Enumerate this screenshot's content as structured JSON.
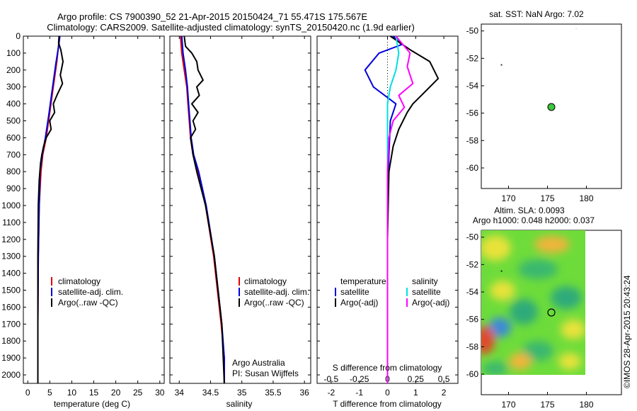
{
  "title": {
    "line1": "Argo profile: CS 7900390_52 21-Apr-2015 20150424_71 55.471S 175.567E",
    "line2": "Climatology: CARS2009. Satellite-adjusted climatology: synTS_20150420.nc (1.9d earlier)"
  },
  "colors": {
    "climatology": "#e00000",
    "satellite": "#0000e0",
    "argo": "#000000",
    "sal_satellite": "#00e0e0",
    "sal_argo": "#ff00ff",
    "argo_dot": "#3cc83c"
  },
  "chart_data": [
    {
      "type": "line",
      "xlabel": "temperature (deg C)",
      "ylabel": "",
      "xlim": [
        -1,
        31
      ],
      "ylim": [
        2050,
        0
      ],
      "xticks": [
        "0",
        "5",
        "10",
        "15",
        "20",
        "25",
        "30"
      ],
      "yticks": [
        "0",
        "100",
        "200",
        "300",
        "400",
        "500",
        "600",
        "700",
        "800",
        "900",
        "1000",
        "1100",
        "1200",
        "1300",
        "1400",
        "1500",
        "1600",
        "1700",
        "1800",
        "1900",
        "2000"
      ],
      "legend": [
        "climatology",
        "satellite-adj. clim.",
        "Argo(..raw -QC)"
      ],
      "series": [
        {
          "name": "climatology",
          "color": "#e00000",
          "x": [
            7.2,
            7.0,
            6.6,
            5.8,
            5.0,
            4.2,
            3.4,
            3.0,
            2.6,
            2.4,
            2.3,
            2.3
          ],
          "y": [
            0,
            50,
            150,
            300,
            450,
            600,
            700,
            800,
            1000,
            1300,
            1700,
            2050
          ]
        },
        {
          "name": "satellite-adj. clim.",
          "color": "#0000e0",
          "x": [
            7.3,
            7.0,
            6.4,
            5.6,
            4.8,
            4.0,
            3.3,
            2.8,
            2.6,
            2.4,
            2.3,
            2.3
          ],
          "y": [
            0,
            60,
            160,
            310,
            460,
            600,
            700,
            800,
            1000,
            1300,
            1700,
            2050
          ]
        },
        {
          "name": "Argo(..raw -QC)",
          "color": "#000000",
          "x": [
            7.1,
            7.0,
            7.5,
            8.0,
            7.4,
            7.9,
            6.6,
            5.8,
            6.1,
            5.0,
            5.3,
            4.2,
            3.6,
            3.2,
            2.9,
            2.6,
            2.4,
            2.3,
            2.3,
            2.3
          ],
          "y": [
            0,
            40,
            80,
            150,
            230,
            280,
            350,
            400,
            450,
            500,
            550,
            600,
            650,
            700,
            750,
            850,
            1000,
            1300,
            1700,
            2050
          ]
        }
      ]
    },
    {
      "type": "line",
      "xlabel": "salinity",
      "xlim": [
        33.85,
        36.1
      ],
      "ylim": [
        2050,
        0
      ],
      "xticks": [
        "34",
        "34.5",
        "35",
        "35.5",
        "36"
      ],
      "legend": [
        "climatology",
        "satellite-adj. clim.",
        "Argo(..raw -QC)"
      ],
      "annotation": [
        "Argo Australia",
        "PI: Susan Wijffels"
      ],
      "series": [
        {
          "name": "climatology",
          "color": "#e00000",
          "x": [
            34.02,
            34.04,
            34.08,
            34.12,
            34.14,
            34.16,
            34.18,
            34.22,
            34.3,
            34.42,
            34.55,
            34.67,
            34.72,
            34.72
          ],
          "y": [
            0,
            100,
            200,
            300,
            400,
            500,
            600,
            700,
            800,
            1000,
            1300,
            1700,
            1900,
            2050
          ]
        },
        {
          "name": "satellite-adj. clim.",
          "color": "#0000e0",
          "x": [
            34.04,
            34.06,
            34.1,
            34.13,
            34.15,
            34.17,
            34.19,
            34.23,
            34.31,
            34.43,
            34.56,
            34.68,
            34.72,
            34.72
          ],
          "y": [
            0,
            100,
            200,
            300,
            400,
            500,
            600,
            700,
            800,
            1000,
            1300,
            1700,
            1900,
            2050
          ]
        },
        {
          "name": "Argo(..raw -QC)",
          "color": "#000000",
          "x": [
            34.08,
            34.1,
            34.2,
            34.28,
            34.3,
            34.38,
            34.28,
            34.32,
            34.2,
            34.3,
            34.22,
            34.26,
            34.18,
            34.2,
            34.22,
            34.28,
            34.42,
            34.56,
            34.68,
            34.72
          ],
          "y": [
            0,
            60,
            100,
            150,
            200,
            260,
            300,
            350,
            400,
            450,
            500,
            550,
            600,
            650,
            700,
            800,
            1000,
            1300,
            1700,
            2050
          ]
        }
      ]
    },
    {
      "type": "line",
      "xlabel": "T difference from climatology",
      "xlabel_top": "S difference from climatology",
      "xlim": [
        -2.5,
        2.5
      ],
      "ylim": [
        2050,
        0
      ],
      "xticks": [
        "-2",
        "-1",
        "0",
        "1",
        "2"
      ],
      "xticks_top": [
        "-0.5",
        "-0.25",
        "0",
        "0.25",
        "0.5"
      ],
      "legend_temperature": [
        "temperature",
        "satellite",
        "Argo(-adj)"
      ],
      "legend_salinity": [
        "salinity",
        "satellite",
        "Argo(-adj)"
      ],
      "series": [
        {
          "name": "satellite",
          "color": "#0000e0",
          "x": [
            0.2,
            0.5,
            -0.3,
            -0.8,
            -0.5,
            0.3,
            0.1,
            0.05,
            0.0,
            0.0,
            0.0
          ],
          "y": [
            0,
            50,
            100,
            200,
            300,
            400,
            500,
            700,
            1000,
            1500,
            2050
          ]
        },
        {
          "name": "Argo(-adj)",
          "color": "#000000",
          "x": [
            0.1,
            0.8,
            1.5,
            1.8,
            1.2,
            0.9,
            0.7,
            0.4,
            0.2,
            0.05,
            0.0,
            0.0
          ],
          "y": [
            0,
            80,
            150,
            250,
            350,
            400,
            450,
            550,
            650,
            800,
            1200,
            2050
          ]
        },
        {
          "name": "satellite",
          "color": "#00e0e0",
          "x": [
            0.3,
            0.4,
            0.3,
            0.1,
            0.0,
            0.0,
            0.0,
            0.0
          ],
          "y": [
            0,
            100,
            200,
            300,
            400,
            600,
            1000,
            2050
          ]
        },
        {
          "name": "Argo(-adj)",
          "color": "#ff00ff",
          "x": [
            0.3,
            0.8,
            0.7,
            0.9,
            0.4,
            0.6,
            0.2,
            0.05,
            0.0,
            0.0
          ],
          "y": [
            0,
            100,
            180,
            280,
            350,
            420,
            500,
            600,
            800,
            2050
          ]
        }
      ]
    }
  ],
  "maps": [
    {
      "title": "sat. SST: NaN Argo: 7.02",
      "xticks": [
        "170",
        "175",
        "180"
      ],
      "yticks": [
        "-50",
        "-52",
        "-54",
        "-56",
        "-58",
        "-60"
      ],
      "argo_lon": 175.567,
      "argo_lat": -55.471
    },
    {
      "title_line1": "Altim. SLA: 0.0093",
      "title_line2": "Argo h1000: 0.048 h2000: 0.037",
      "xticks": [
        "170",
        "175",
        "180"
      ],
      "yticks": [
        "-50",
        "-52",
        "-54",
        "-56",
        "-58",
        "-60"
      ],
      "argo_lon": 175.567,
      "argo_lat": -55.471
    }
  ],
  "credit": "©IMOS 28-Apr-2015 20:43:24"
}
